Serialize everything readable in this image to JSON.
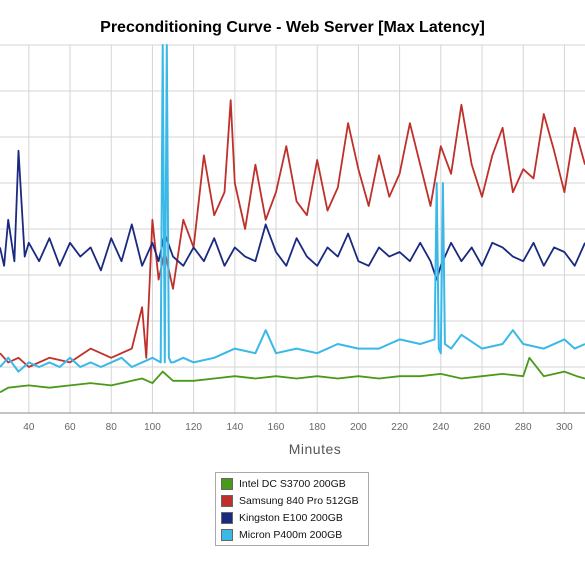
{
  "chart_data": {
    "type": "line",
    "title": "Preconditioning Curve - Web Server [Max Latency]",
    "xlabel": "Minutes",
    "ylabel": "",
    "xlim": [
      26,
      310
    ],
    "ylim": [
      0,
      8
    ],
    "x_ticks": [
      40,
      60,
      80,
      100,
      120,
      140,
      160,
      180,
      200,
      220,
      240,
      260,
      280,
      300
    ],
    "grid": true,
    "legend_position": "bottom",
    "series": [
      {
        "name": "Intel DC S3700 200GB",
        "color": "#4a9a1a",
        "x": [
          26,
          30,
          40,
          50,
          60,
          70,
          80,
          90,
          95,
          100,
          105,
          110,
          120,
          130,
          140,
          150,
          160,
          170,
          180,
          190,
          200,
          210,
          220,
          230,
          240,
          250,
          260,
          270,
          280,
          283,
          290,
          300,
          306,
          310
        ],
        "y": [
          0.45,
          0.55,
          0.6,
          0.55,
          0.6,
          0.65,
          0.6,
          0.7,
          0.75,
          0.65,
          0.9,
          0.7,
          0.7,
          0.75,
          0.8,
          0.75,
          0.8,
          0.75,
          0.8,
          0.75,
          0.8,
          0.75,
          0.8,
          0.8,
          0.85,
          0.75,
          0.8,
          0.85,
          0.8,
          1.2,
          0.8,
          0.9,
          0.8,
          0.75
        ]
      },
      {
        "name": "Samsung 840 Pro 512GB",
        "color": "#c0302a",
        "x": [
          26,
          30,
          35,
          40,
          50,
          60,
          70,
          80,
          90,
          95,
          97,
          100,
          103,
          106,
          110,
          115,
          120,
          125,
          130,
          135,
          138,
          140,
          145,
          150,
          155,
          160,
          165,
          170,
          175,
          180,
          185,
          190,
          195,
          200,
          205,
          210,
          215,
          220,
          225,
          230,
          235,
          240,
          245,
          250,
          255,
          260,
          265,
          270,
          275,
          280,
          285,
          290,
          295,
          300,
          305,
          310
        ],
        "y": [
          1.3,
          1.1,
          1.2,
          1.0,
          1.2,
          1.1,
          1.4,
          1.2,
          1.4,
          2.3,
          1.2,
          4.2,
          2.9,
          3.5,
          2.7,
          4.2,
          3.6,
          5.6,
          4.3,
          4.8,
          6.8,
          5.0,
          4.0,
          5.4,
          4.2,
          4.8,
          5.8,
          4.6,
          4.3,
          5.5,
          4.4,
          4.9,
          6.3,
          5.3,
          4.5,
          5.6,
          4.7,
          5.2,
          6.3,
          5.4,
          4.5,
          5.8,
          5.2,
          6.7,
          5.4,
          4.7,
          5.6,
          6.2,
          4.8,
          5.3,
          5.1,
          6.5,
          5.7,
          4.8,
          6.2,
          5.4
        ]
      },
      {
        "name": "Kingston E100 200GB",
        "color": "#1a2a80",
        "x": [
          26,
          28,
          30,
          33,
          35,
          38,
          40,
          45,
          50,
          55,
          60,
          65,
          70,
          75,
          80,
          85,
          90,
          95,
          100,
          103,
          106,
          110,
          115,
          120,
          125,
          130,
          135,
          140,
          145,
          150,
          155,
          160,
          165,
          170,
          175,
          180,
          185,
          190,
          195,
          200,
          205,
          210,
          215,
          220,
          225,
          230,
          235,
          238,
          240,
          245,
          250,
          255,
          260,
          265,
          270,
          275,
          280,
          285,
          290,
          295,
          300,
          305,
          310
        ],
        "y": [
          3.6,
          3.2,
          4.2,
          3.3,
          5.7,
          3.4,
          3.7,
          3.3,
          3.8,
          3.2,
          3.7,
          3.4,
          3.6,
          3.1,
          3.8,
          3.3,
          4.1,
          3.2,
          3.7,
          3.3,
          3.9,
          3.4,
          3.2,
          3.6,
          3.3,
          3.8,
          3.2,
          3.6,
          3.4,
          3.3,
          4.1,
          3.5,
          3.2,
          3.8,
          3.4,
          3.2,
          3.6,
          3.4,
          3.9,
          3.3,
          3.2,
          3.6,
          3.4,
          3.5,
          3.3,
          3.7,
          3.3,
          2.9,
          3.2,
          3.7,
          3.3,
          3.6,
          3.2,
          3.7,
          3.6,
          3.4,
          3.3,
          3.7,
          3.2,
          3.6,
          3.5,
          3.2,
          3.7
        ]
      },
      {
        "name": "Micron P400m 200GB",
        "color": "#3ab8e8",
        "x": [
          26,
          30,
          35,
          40,
          45,
          50,
          55,
          60,
          65,
          70,
          75,
          80,
          85,
          90,
          95,
          100,
          104,
          105,
          106,
          107,
          108,
          109,
          110,
          115,
          120,
          130,
          140,
          150,
          155,
          160,
          170,
          180,
          190,
          200,
          210,
          220,
          230,
          237,
          238,
          239,
          240,
          241,
          242,
          245,
          250,
          260,
          270,
          275,
          280,
          290,
          300,
          305,
          310
        ],
        "y": [
          1.0,
          1.2,
          0.9,
          1.1,
          1.0,
          1.1,
          1.0,
          1.2,
          1.0,
          1.1,
          1.0,
          1.1,
          1.2,
          1.0,
          1.1,
          1.2,
          1.1,
          8.0,
          1.1,
          8.0,
          1.2,
          1.1,
          1.1,
          1.2,
          1.1,
          1.2,
          1.4,
          1.3,
          1.8,
          1.3,
          1.4,
          1.3,
          1.5,
          1.4,
          1.4,
          1.6,
          1.5,
          1.6,
          5.0,
          1.4,
          1.3,
          5.0,
          1.5,
          1.4,
          1.7,
          1.4,
          1.5,
          1.8,
          1.5,
          1.4,
          1.6,
          1.4,
          1.5
        ]
      }
    ]
  }
}
